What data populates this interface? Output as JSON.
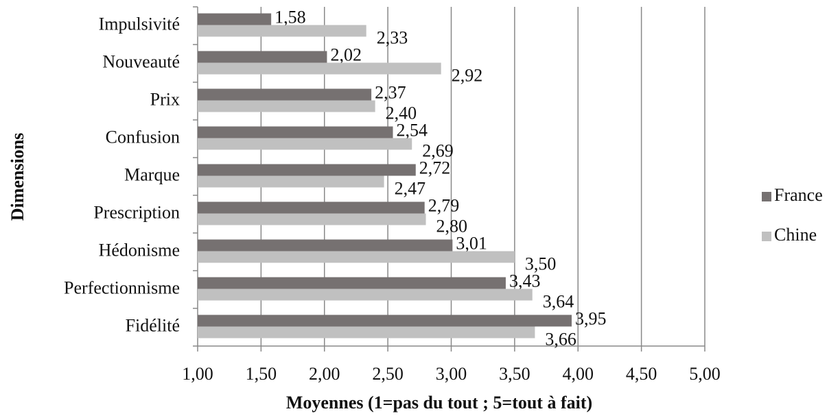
{
  "chart_data": {
    "type": "bar",
    "orientation": "horizontal",
    "x_label": "Moyennes (1=pas du tout ; 5=tout à fait)",
    "y_label": "Dimensions",
    "categories": [
      "Impulsivité",
      "Nouveauté",
      "Prix",
      "Confusion",
      "Marque",
      "Prescription",
      "Hédonisme",
      "Perfectionnisme",
      "Fidélité"
    ],
    "series": [
      {
        "name": "France",
        "color": "#767171",
        "values": [
          1.58,
          2.02,
          2.37,
          2.54,
          2.72,
          2.79,
          3.01,
          3.43,
          3.95
        ],
        "value_labels": [
          "1,58",
          "2,02",
          "2,37",
          "2,54",
          "2,72",
          "2,79",
          "3,01",
          "3,43",
          "3,95"
        ]
      },
      {
        "name": "Chine",
        "color": "#c0c0c0",
        "values": [
          2.33,
          2.92,
          2.4,
          2.69,
          2.47,
          2.8,
          3.5,
          3.64,
          3.66
        ],
        "value_labels": [
          "2,33",
          "2,92",
          "2,40",
          "2,69",
          "2,47",
          "2,80",
          "3,50",
          "3,64",
          "3,66"
        ]
      }
    ],
    "xlim": [
      1,
      5
    ],
    "xticks": [
      {
        "value": 1,
        "label": "1,00"
      },
      {
        "value": 1.5,
        "label": "1,50"
      },
      {
        "value": 2,
        "label": "2,00"
      },
      {
        "value": 2.5,
        "label": "2,50"
      },
      {
        "value": 3,
        "label": "3,00"
      },
      {
        "value": 3.5,
        "label": "3,50"
      },
      {
        "value": 4,
        "label": "4,00"
      },
      {
        "value": 4.5,
        "label": "4,50"
      },
      {
        "value": 5,
        "label": "5,00"
      }
    ],
    "grid": true,
    "legend": "right"
  }
}
